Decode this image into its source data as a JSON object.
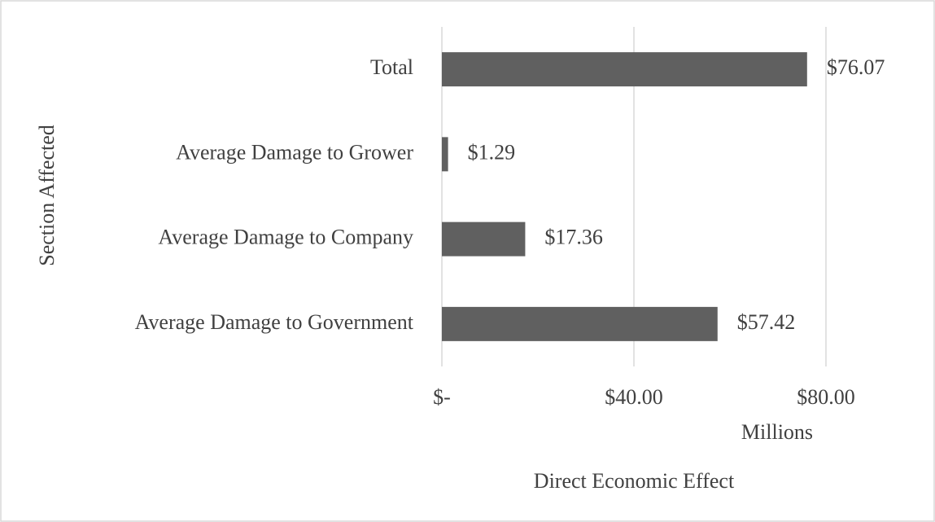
{
  "chart_data": {
    "type": "barh",
    "categories": [
      "Total",
      "Average Damage to Grower",
      "Average Damage to Company",
      "Average Damage to Government"
    ],
    "values": [
      76.07,
      1.29,
      17.36,
      57.42
    ],
    "value_labels": [
      "$76.07",
      "$1.29",
      "$17.36",
      "$57.42"
    ],
    "color": "#606060",
    "xlim": [
      0,
      80
    ],
    "xticks": [
      {
        "value": 0,
        "label": "$-"
      },
      {
        "value": 40,
        "label": "$40.00"
      },
      {
        "value": 80,
        "label": "$80.00"
      }
    ],
    "display_unit": "Millions",
    "xlabel": "Direct Economic Effect",
    "ylabel": "Section Affected",
    "grid": true
  }
}
